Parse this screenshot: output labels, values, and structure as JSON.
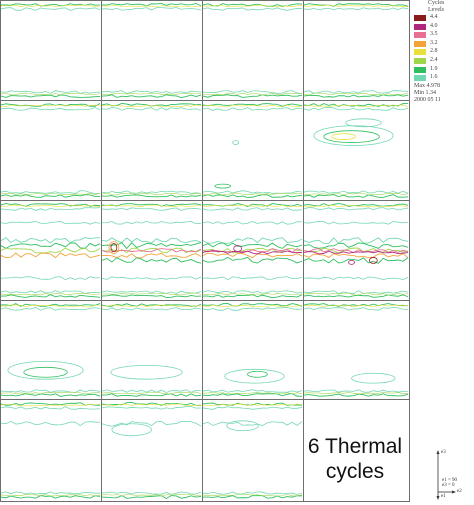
{
  "caption": {
    "line1": "6 Thermal",
    "line2": "cycles"
  },
  "legend": {
    "title_line1": "Cycles",
    "title_line2": "Levels",
    "levels": [
      {
        "value": "4.4",
        "color": "#8b1a1a"
      },
      {
        "value": "4.0",
        "color": "#b0287e"
      },
      {
        "value": "3.5",
        "color": "#e76f92"
      },
      {
        "value": "3.2",
        "color": "#f2a33a"
      },
      {
        "value": "2.8",
        "color": "#e9e03b"
      },
      {
        "value": "2.4",
        "color": "#9fd64a"
      },
      {
        "value": "1.9",
        "color": "#2fbf5f"
      },
      {
        "value": "1.6",
        "color": "#73d7b1"
      }
    ],
    "max_text": "Max 4.978",
    "min_text": "Min 1.34",
    "date_text": "2000 05 11"
  },
  "axes": {
    "x_label": "e2",
    "z_label": "e3",
    "y_label": "e1",
    "note1": "e1 = 90",
    "note2": "e3 = 0"
  },
  "colors": {
    "grid_border": "#6e6e6e",
    "background": "#ffffff"
  }
}
